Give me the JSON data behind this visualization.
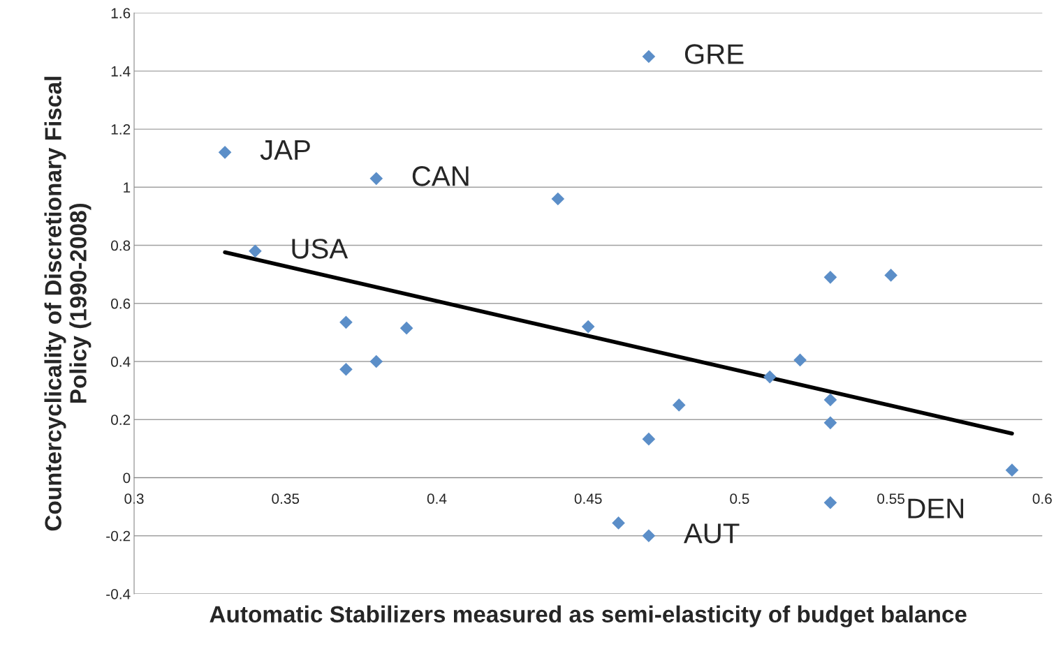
{
  "chart_data": {
    "type": "scatter",
    "xlabel": "Automatic Stabilizers measured as semi-elasticity of budget balance",
    "ylabel": "Countercyclicality of Discretionary Fiscal\nPolicy (1990-2008)",
    "xlim": [
      0.3,
      0.6
    ],
    "xticks": [
      0.3,
      0.35,
      0.4,
      0.45,
      0.5,
      0.55,
      0.6
    ],
    "ylim": [
      -0.4,
      1.6
    ],
    "yticks": [
      -0.4,
      -0.2,
      0,
      0.2,
      0.4,
      0.6,
      0.8,
      1,
      1.2,
      1.4,
      1.6
    ],
    "grid": "y",
    "series": [
      {
        "color": "#5b8ec8",
        "marker": "diamond",
        "x": [
          0.33,
          0.34,
          0.38,
          0.44,
          0.47,
          0.37,
          0.37,
          0.38,
          0.39,
          0.45,
          0.47,
          0.48,
          0.51,
          0.52,
          0.53,
          0.53,
          0.53,
          0.53,
          0.55,
          0.59,
          0.46,
          0.47
        ],
        "values": [
          1.12,
          0.78,
          1.03,
          0.96,
          1.45,
          0.535,
          0.373,
          0.4,
          0.515,
          0.52,
          0.133,
          0.25,
          0.347,
          0.405,
          0.69,
          0.268,
          0.189,
          -0.086,
          0.697,
          0.026,
          -0.156,
          -0.2
        ]
      },
      {
        "type": "line",
        "color": "#000000",
        "x": [
          0.33,
          0.59
        ],
        "values": [
          0.776,
          0.152
        ]
      }
    ],
    "annotations": [
      {
        "text": "JAP",
        "x": 0.33,
        "y": 1.12
      },
      {
        "text": "GRE",
        "x": 0.47,
        "y": 1.45
      },
      {
        "text": "CAN",
        "x": 0.38,
        "y": 1.03
      },
      {
        "text": "USA",
        "x": 0.34,
        "y": 0.78
      },
      {
        "text": "DEN",
        "x": 0.59,
        "y": 0.026
      },
      {
        "text": "AUT",
        "x": 0.47,
        "y": -0.2
      }
    ]
  }
}
